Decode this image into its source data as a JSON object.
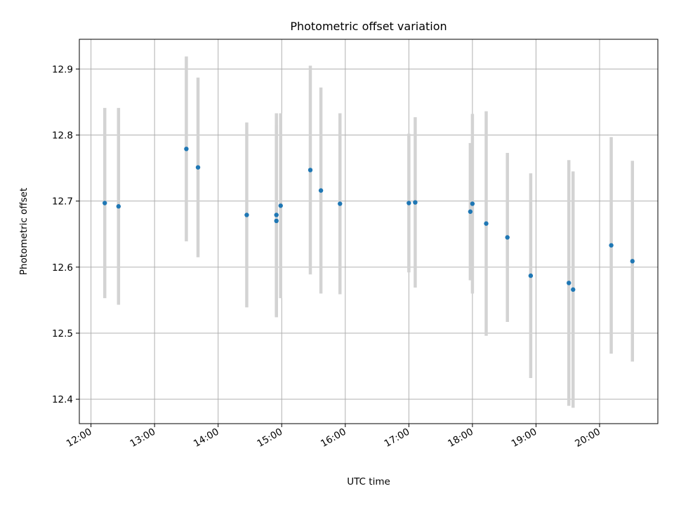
{
  "chart_data": {
    "type": "scatter",
    "title": "Photometric offset variation",
    "xlabel": "UTC time",
    "ylabel": "Photometric offset",
    "x_ticks": [
      "12:00",
      "13:00",
      "14:00",
      "15:00",
      "16:00",
      "17:00",
      "18:00",
      "19:00",
      "20:00"
    ],
    "y_ticks": [
      "12.4",
      "12.5",
      "12.6",
      "12.7",
      "12.8",
      "12.9"
    ],
    "xlim": [
      "11:49",
      "20:55"
    ],
    "ylim": [
      12.363,
      12.945
    ],
    "grid": true,
    "colors": {
      "point": "#1f77b4",
      "errorbar": "#d3d3d3",
      "grid": "#b0b0b0"
    },
    "points": [
      {
        "x": "12:13",
        "y": 12.697,
        "yerr": 0.144
      },
      {
        "x": "12:26",
        "y": 12.692,
        "yerr": 0.149
      },
      {
        "x": "13:30",
        "y": 12.779,
        "yerr": 0.14
      },
      {
        "x": "13:41",
        "y": 12.751,
        "yerr": 0.136
      },
      {
        "x": "14:27",
        "y": 12.679,
        "yerr": 0.14
      },
      {
        "x": "14:55",
        "y": 12.67,
        "yerr": 0.146
      },
      {
        "x": "14:55",
        "y": 12.679,
        "yerr": 0.154
      },
      {
        "x": "14:59",
        "y": 12.693,
        "yerr": 0.14
      },
      {
        "x": "15:27",
        "y": 12.747,
        "yerr": 0.158
      },
      {
        "x": "15:37",
        "y": 12.716,
        "yerr": 0.156
      },
      {
        "x": "15:55",
        "y": 12.696,
        "yerr": 0.137
      },
      {
        "x": "17:00",
        "y": 12.697,
        "yerr": 0.105
      },
      {
        "x": "17:06",
        "y": 12.698,
        "yerr": 0.129
      },
      {
        "x": "17:58",
        "y": 12.684,
        "yerr": 0.104
      },
      {
        "x": "18:00",
        "y": 12.696,
        "yerr": 0.136
      },
      {
        "x": "18:13",
        "y": 12.666,
        "yerr": 0.17
      },
      {
        "x": "18:33",
        "y": 12.645,
        "yerr": 0.128
      },
      {
        "x": "18:55",
        "y": 12.587,
        "yerr": 0.155
      },
      {
        "x": "19:31",
        "y": 12.576,
        "yerr": 0.186
      },
      {
        "x": "19:35",
        "y": 12.566,
        "yerr": 0.179
      },
      {
        "x": "20:11",
        "y": 12.633,
        "yerr": 0.164
      },
      {
        "x": "20:31",
        "y": 12.609,
        "yerr": 0.152
      }
    ]
  }
}
